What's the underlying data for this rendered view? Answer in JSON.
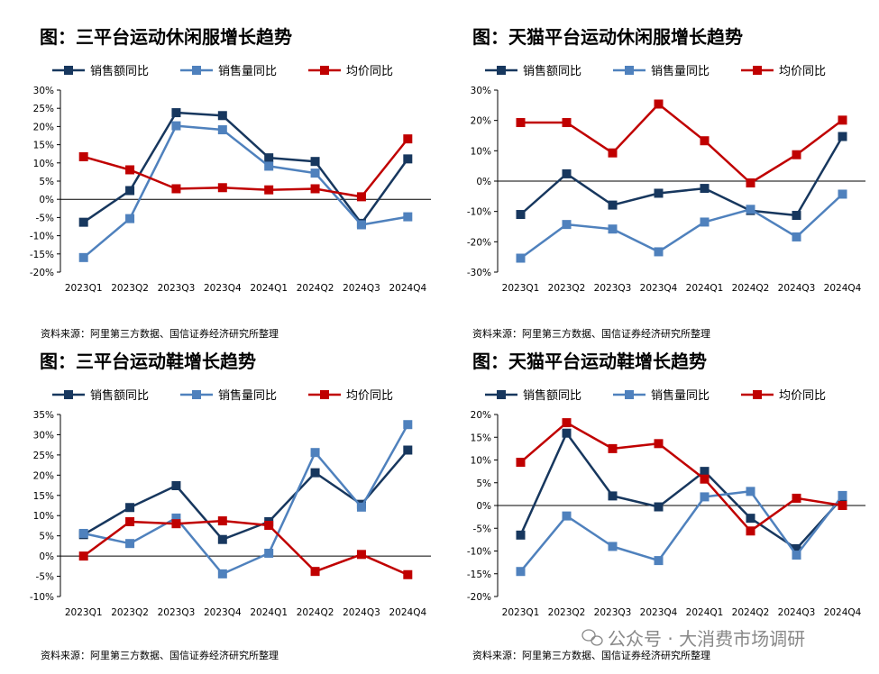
{
  "source_text": "资料来源：阿里第三方数据、国信证券经济研究所整理",
  "watermark": "公众号 · 大消费市场调研",
  "colors": {
    "sales_amount": "#17375E",
    "sales_volume": "#4F81BD",
    "avg_price": "#C00000"
  },
  "chart_data": [
    {
      "type": "line",
      "title": "图：三平台运动休闲服增长趋势",
      "categories": [
        "2023Q1",
        "2023Q2",
        "2023Q3",
        "2023Q4",
        "2024Q1",
        "2024Q2",
        "2024Q3",
        "2024Q4"
      ],
      "ylim": [
        -20,
        30
      ],
      "yticks": [
        -20,
        -15,
        -10,
        -5,
        0,
        5,
        10,
        15,
        20,
        25,
        30
      ],
      "ytick_labels": [
        "-20%",
        "-15%",
        "-10%",
        "-5%",
        "0%",
        "5%",
        "10%",
        "15%",
        "20%",
        "25%",
        "30%"
      ],
      "series": [
        {
          "name": "销售额同比",
          "color": "#17375E",
          "values": [
            -6.3,
            2.4,
            23.8,
            23.0,
            11.4,
            10.4,
            -6.6,
            11.1
          ]
        },
        {
          "name": "销售量同比",
          "color": "#4F81BD",
          "values": [
            -16.0,
            -5.3,
            20.2,
            19.1,
            9.1,
            7.2,
            -7.0,
            -4.8
          ]
        },
        {
          "name": "均价同比",
          "color": "#C00000",
          "values": [
            11.7,
            8.1,
            2.9,
            3.2,
            2.6,
            2.9,
            0.7,
            16.6
          ]
        }
      ]
    },
    {
      "type": "line",
      "title": "图：天猫平台运动休闲服增长趋势",
      "categories": [
        "2023Q1",
        "2023Q2",
        "2023Q3",
        "2023Q4",
        "2024Q1",
        "2024Q2",
        "2024Q3",
        "2024Q4"
      ],
      "ylim": [
        -30,
        30
      ],
      "yticks": [
        -30,
        -20,
        -10,
        0,
        10,
        20,
        30
      ],
      "ytick_labels": [
        "-30%",
        "-20%",
        "-10%",
        "0%",
        "10%",
        "20%",
        "30%"
      ],
      "series": [
        {
          "name": "销售额同比",
          "color": "#17375E",
          "values": [
            -11.0,
            2.4,
            -7.9,
            -4.0,
            -2.4,
            -9.7,
            -11.3,
            14.7
          ]
        },
        {
          "name": "销售量同比",
          "color": "#4F81BD",
          "values": [
            -25.4,
            -14.3,
            -15.8,
            -23.3,
            -13.5,
            -9.3,
            -18.4,
            -4.3
          ]
        },
        {
          "name": "均价同比",
          "color": "#C00000",
          "values": [
            19.3,
            19.3,
            9.3,
            25.4,
            13.3,
            -0.6,
            8.7,
            20.1
          ]
        }
      ]
    },
    {
      "type": "line",
      "title": "图：三平台运动鞋增长趋势",
      "categories": [
        "2023Q1",
        "2023Q2",
        "2023Q3",
        "2023Q4",
        "2024Q1",
        "2024Q2",
        "2024Q3",
        "2024Q4"
      ],
      "ylim": [
        -10,
        35
      ],
      "yticks": [
        -10,
        -5,
        0,
        5,
        10,
        15,
        20,
        25,
        30,
        35
      ],
      "ytick_labels": [
        "-10%",
        "-5%",
        "0%",
        "5%",
        "10%",
        "15%",
        "20%",
        "25%",
        "30%",
        "35%"
      ],
      "series": [
        {
          "name": "销售额同比",
          "color": "#17375E",
          "values": [
            5.3,
            12.0,
            17.4,
            4.1,
            8.5,
            20.6,
            12.8,
            26.2
          ]
        },
        {
          "name": "销售量同比",
          "color": "#4F81BD",
          "values": [
            5.6,
            3.1,
            9.4,
            -4.4,
            0.7,
            25.6,
            12.1,
            32.5
          ]
        },
        {
          "name": "均价同比",
          "color": "#C00000",
          "values": [
            0.0,
            8.5,
            8.0,
            8.7,
            7.6,
            -3.8,
            0.4,
            -4.6
          ]
        }
      ]
    },
    {
      "type": "line",
      "title": "图：天猫平台运动鞋增长趋势",
      "categories": [
        "2023Q1",
        "2023Q2",
        "2023Q3",
        "2023Q4",
        "2024Q1",
        "2024Q2",
        "2024Q3",
        "2024Q4"
      ],
      "ylim": [
        -20,
        20
      ],
      "yticks": [
        -20,
        -15,
        -10,
        -5,
        0,
        5,
        10,
        15,
        20
      ],
      "ytick_labels": [
        "-20%",
        "-15%",
        "-10%",
        "-5%",
        "0%",
        "5%",
        "10%",
        "15%",
        "20%"
      ],
      "series": [
        {
          "name": "销售额同比",
          "color": "#17375E",
          "values": [
            -6.5,
            15.9,
            2.1,
            -0.3,
            7.5,
            -2.8,
            -9.5,
            1.7
          ]
        },
        {
          "name": "销售量同比",
          "color": "#4F81BD",
          "values": [
            -14.5,
            -2.3,
            -9.0,
            -12.1,
            1.9,
            3.1,
            -10.9,
            2.2
          ]
        },
        {
          "name": "均价同比",
          "color": "#C00000",
          "values": [
            9.5,
            18.2,
            12.5,
            13.6,
            5.8,
            -5.6,
            1.6,
            0.0
          ]
        }
      ]
    }
  ]
}
